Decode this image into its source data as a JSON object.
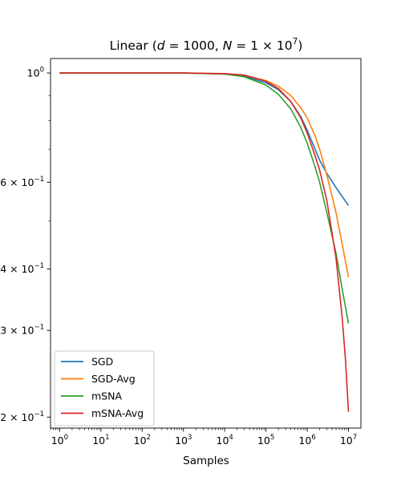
{
  "chart_data": {
    "type": "line",
    "title": "Linear (d = 1000, N = 1 × 10⁷)",
    "title_parts": {
      "prefix": "Linear (",
      "d_var": "d",
      "d_eq": " = 1000, ",
      "n_var": "N",
      "n_eq": " = 1 × 10",
      "n_exp": "7",
      "suffix": ")"
    },
    "xlabel": "Samples",
    "ylabel": "",
    "x_scale": "log",
    "y_scale": "log",
    "xlim": [
      0.6,
      20000000
    ],
    "ylim": [
      0.19,
      1.07
    ],
    "x_ticks": [
      {
        "value": 1,
        "base": "10",
        "exp": "0"
      },
      {
        "value": 10,
        "base": "10",
        "exp": "1"
      },
      {
        "value": 100,
        "base": "10",
        "exp": "2"
      },
      {
        "value": 1000,
        "base": "10",
        "exp": "3"
      },
      {
        "value": 10000,
        "base": "10",
        "exp": "4"
      },
      {
        "value": 100000,
        "base": "10",
        "exp": "5"
      },
      {
        "value": 1000000,
        "base": "10",
        "exp": "6"
      },
      {
        "value": 10000000,
        "base": "10",
        "exp": "7"
      }
    ],
    "y_ticks": [
      {
        "value": 1.0,
        "label": "10",
        "exp": "0",
        "mantissa": ""
      },
      {
        "value": 0.6,
        "label": "10",
        "exp": "−1",
        "mantissa": "6 × "
      },
      {
        "value": 0.4,
        "label": "10",
        "exp": "−1",
        "mantissa": "4 × "
      },
      {
        "value": 0.3,
        "label": "10",
        "exp": "−1",
        "mantissa": "3 × "
      },
      {
        "value": 0.2,
        "label": "10",
        "exp": "−1",
        "mantissa": "2 × "
      }
    ],
    "y_minor_ticks": [
      0.9,
      0.8,
      0.7,
      0.5
    ],
    "legend_position": "lower-left",
    "grid": false,
    "series": [
      {
        "name": "SGD",
        "color": "#1f77b4",
        "x": [
          1,
          10,
          100,
          1000,
          10000,
          30000,
          100000,
          200000,
          400000,
          700000,
          1000000,
          1500000,
          2000000,
          3000000,
          5000000,
          10000000
        ],
        "y": [
          1.0,
          1.0,
          1.0,
          1.0,
          0.995,
          0.985,
          0.955,
          0.925,
          0.875,
          0.815,
          0.765,
          0.705,
          0.665,
          0.625,
          0.585,
          0.538
        ]
      },
      {
        "name": "SGD-Avg",
        "color": "#ff7f0e",
        "x": [
          1,
          10,
          100,
          1000,
          10000,
          30000,
          100000,
          200000,
          400000,
          700000,
          1000000,
          1500000,
          2000000,
          3000000,
          5000000,
          7000000,
          10000000
        ],
        "y": [
          1.0,
          1.0,
          1.0,
          1.0,
          0.995,
          0.99,
          0.965,
          0.94,
          0.9,
          0.85,
          0.81,
          0.75,
          0.7,
          0.62,
          0.52,
          0.45,
          0.385
        ]
      },
      {
        "name": "mSNA",
        "color": "#2ca02c",
        "x": [
          1,
          10,
          100,
          1000,
          10000,
          30000,
          100000,
          200000,
          400000,
          700000,
          1000000,
          1500000,
          2000000,
          3000000,
          5000000,
          7000000,
          10000000
        ],
        "y": [
          1.0,
          1.0,
          1.0,
          1.0,
          0.995,
          0.982,
          0.945,
          0.905,
          0.845,
          0.775,
          0.72,
          0.65,
          0.6,
          0.52,
          0.43,
          0.365,
          0.31
        ]
      },
      {
        "name": "mSNA-Avg",
        "color": "#d62728",
        "x": [
          1,
          10,
          100,
          1000,
          10000,
          30000,
          100000,
          200000,
          400000,
          700000,
          1000000,
          1500000,
          2000000,
          3000000,
          5000000,
          7000000,
          8500000,
          10000000
        ],
        "y": [
          1.0,
          1.0,
          1.0,
          1.0,
          0.997,
          0.99,
          0.962,
          0.93,
          0.875,
          0.81,
          0.755,
          0.685,
          0.635,
          0.55,
          0.42,
          0.32,
          0.26,
          0.205
        ]
      }
    ]
  }
}
